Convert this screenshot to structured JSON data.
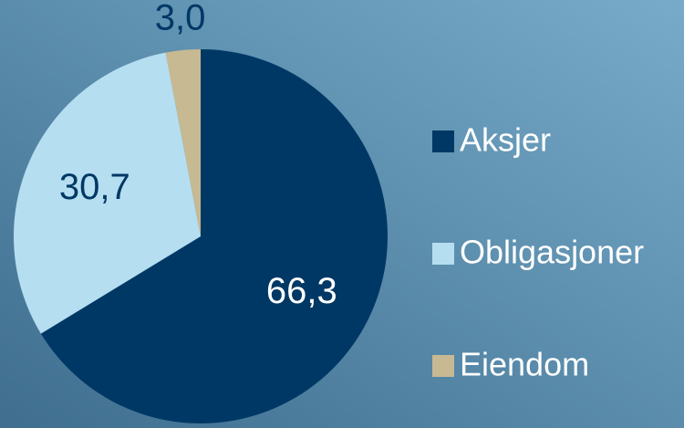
{
  "chart_data": {
    "type": "pie",
    "categories": [
      "Aksjer",
      "Obligasjoner",
      "Eiendom"
    ],
    "values": [
      66.3,
      30.7,
      3.0
    ],
    "value_labels": [
      "66,3",
      "30,7",
      "3,0"
    ],
    "colors": [
      "#003865",
      "#b5def1",
      "#c7b992"
    ],
    "legend": "right"
  }
}
